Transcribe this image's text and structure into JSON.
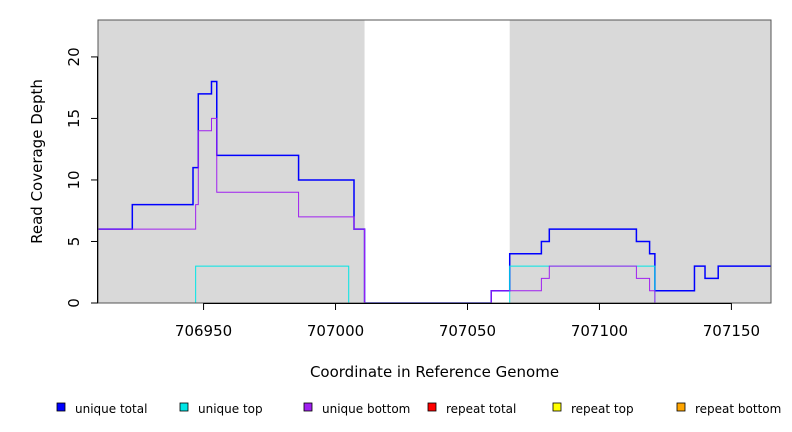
{
  "chart_data": {
    "type": "line",
    "step": true,
    "title": "",
    "xlabel": "Coordinate in Reference Genome",
    "ylabel": "Read Coverage Depth",
    "xlim": [
      706910,
      707165
    ],
    "ylim": [
      0,
      23
    ],
    "x_ticks": [
      706950,
      707000,
      707050,
      707100,
      707150
    ],
    "y_ticks": [
      0,
      5,
      10,
      15,
      20
    ],
    "grid": false,
    "shaded_regions": [
      {
        "start": 706910,
        "end": 707011,
        "color": "#d9d9d9"
      },
      {
        "start": 707066,
        "end": 707165,
        "color": "#d9d9d9"
      }
    ],
    "series": [
      {
        "name": "unique total",
        "color": "#0000ff",
        "x": [
          706910,
          706923,
          706946,
          706948,
          706951,
          706953,
          706955,
          706986,
          707007,
          707011,
          707059,
          707066,
          707078,
          707081,
          707114,
          707119,
          707121,
          707136,
          707140,
          707145,
          707165
        ],
        "y": [
          6,
          8,
          11,
          17,
          17,
          18,
          12,
          10,
          6,
          0,
          1,
          4,
          5,
          6,
          5,
          4,
          1,
          3,
          2,
          3,
          3
        ]
      },
      {
        "name": "unique top",
        "color": "#00e5e5",
        "x": [
          706910,
          706947,
          707005,
          707066,
          707121,
          707165
        ],
        "y": [
          0,
          3,
          0,
          3,
          0,
          0
        ]
      },
      {
        "name": "unique bottom",
        "color": "#a020f0",
        "x": [
          706910,
          706947,
          706948,
          706953,
          706955,
          706986,
          707007,
          707011,
          707059,
          707066,
          707078,
          707081,
          707114,
          707119,
          707121,
          707165
        ],
        "y": [
          6,
          8,
          14,
          15,
          9,
          7,
          6,
          0,
          1,
          1,
          2,
          3,
          2,
          1,
          0,
          0
        ]
      },
      {
        "name": "repeat total",
        "color": "#ff0000",
        "x": [
          706910,
          707165
        ],
        "y": [
          0,
          0
        ]
      },
      {
        "name": "repeat top",
        "color": "#ffff00",
        "x": [
          706910,
          707165
        ],
        "y": [
          0,
          0
        ]
      },
      {
        "name": "repeat bottom",
        "color": "#ffa500",
        "x": [
          706910,
          707165
        ],
        "y": [
          0,
          0
        ]
      }
    ],
    "legend": {
      "placement": "bottom",
      "entries": [
        {
          "label": "unique total",
          "color": "#0000ff"
        },
        {
          "label": "unique top",
          "color": "#00e5e5"
        },
        {
          "label": "unique bottom",
          "color": "#a020f0"
        },
        {
          "label": "repeat total",
          "color": "#ff0000"
        },
        {
          "label": "repeat top",
          "color": "#ffff00"
        },
        {
          "label": "repeat bottom",
          "color": "#ffa500"
        }
      ]
    }
  }
}
